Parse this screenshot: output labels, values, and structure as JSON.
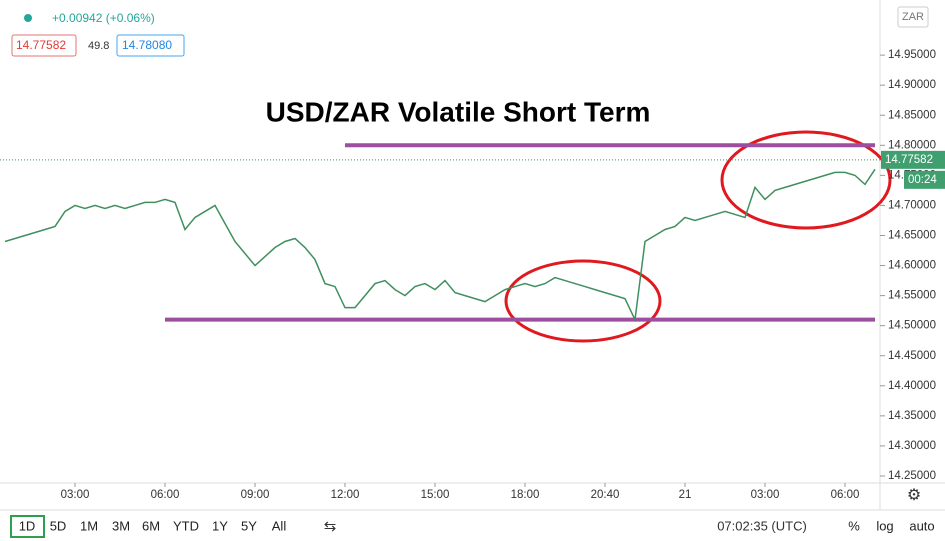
{
  "header": {
    "change": "+0.00942 (+0.06%)",
    "bid": "14.77582",
    "spread": "49.8",
    "ask": "14.78080",
    "currency": "ZAR"
  },
  "toolbar": {
    "ranges": [
      "1D",
      "5D",
      "1M",
      "3M",
      "6M",
      "YTD",
      "1Y",
      "5Y",
      "All"
    ],
    "clock": "07:02:35 (UTC)",
    "options": [
      "%",
      "log",
      "auto"
    ]
  },
  "chart_data": {
    "type": "line",
    "title": "USD/ZAR Volatile Short Term",
    "color": "#3f8f5f",
    "categories": [
      null,
      null,
      null,
      null,
      null,
      null,
      null,
      "03:00",
      null,
      null,
      null,
      null,
      null,
      null,
      null,
      null,
      "06:00",
      null,
      null,
      null,
      null,
      null,
      null,
      null,
      null,
      "09:00",
      null,
      null,
      null,
      null,
      null,
      null,
      null,
      null,
      "12:00",
      null,
      null,
      null,
      null,
      null,
      null,
      null,
      null,
      "15:00",
      null,
      null,
      null,
      null,
      null,
      null,
      null,
      null,
      "18:00",
      null,
      null,
      null,
      null,
      null,
      null,
      null,
      "20:40",
      null,
      null,
      null,
      null,
      null,
      null,
      null,
      "21",
      null,
      null,
      null,
      null,
      null,
      null,
      null,
      "03:00",
      null,
      null,
      null,
      null,
      null,
      null,
      null,
      "06:00",
      null,
      null,
      null
    ],
    "values": [
      14.64,
      14.645,
      14.65,
      14.655,
      14.66,
      14.665,
      14.69,
      14.7,
      14.695,
      14.7,
      14.695,
      14.7,
      14.695,
      14.7,
      14.705,
      14.705,
      14.71,
      14.705,
      14.66,
      14.68,
      14.69,
      14.7,
      14.67,
      14.64,
      14.62,
      14.6,
      14.615,
      14.63,
      14.64,
      14.645,
      14.63,
      14.61,
      14.57,
      14.565,
      14.53,
      14.53,
      14.55,
      14.57,
      14.575,
      14.56,
      14.55,
      14.565,
      14.57,
      14.56,
      14.575,
      14.555,
      14.55,
      14.545,
      14.54,
      14.55,
      14.56,
      14.565,
      14.57,
      14.565,
      14.57,
      14.58,
      14.575,
      14.57,
      14.565,
      14.56,
      14.555,
      14.55,
      14.545,
      14.51,
      14.64,
      14.65,
      14.66,
      14.665,
      14.68,
      14.675,
      14.68,
      14.685,
      14.69,
      14.685,
      14.68,
      14.73,
      14.71,
      14.725,
      14.73,
      14.735,
      14.74,
      14.745,
      14.75,
      14.755,
      14.755,
      14.75,
      14.735,
      14.76
    ],
    "last_price": 14.77582,
    "countdown": "00:24",
    "levels": [
      {
        "value": 14.8,
        "start": 34,
        "end": 87,
        "color": "#9b4f9e"
      },
      {
        "value": 14.51,
        "start": 16,
        "end": 87,
        "color": "#9b4f9e"
      }
    ],
    "ylim": [
      14.24,
      15.04
    ],
    "yticks": [
      {
        "value": 14.25,
        "label": "14.25000"
      },
      {
        "value": 14.3,
        "label": "14.30000"
      },
      {
        "value": 14.35,
        "label": "14.35000"
      },
      {
        "value": 14.4,
        "label": "14.40000"
      },
      {
        "value": 14.45,
        "label": "14.45000"
      },
      {
        "value": 14.5,
        "label": "14.50000"
      },
      {
        "value": 14.55,
        "label": "14.55000"
      },
      {
        "value": 14.6,
        "label": "14.60000"
      },
      {
        "value": 14.65,
        "label": "14.65000"
      },
      {
        "value": 14.7,
        "label": "14.70000"
      },
      {
        "value": 14.75,
        "label": "14.75000"
      },
      {
        "value": 14.8,
        "label": "14.80000"
      },
      {
        "value": 14.85,
        "label": "14.85000"
      },
      {
        "value": 14.9,
        "label": "14.90000"
      },
      {
        "value": 14.95,
        "label": "14.95000"
      }
    ]
  }
}
